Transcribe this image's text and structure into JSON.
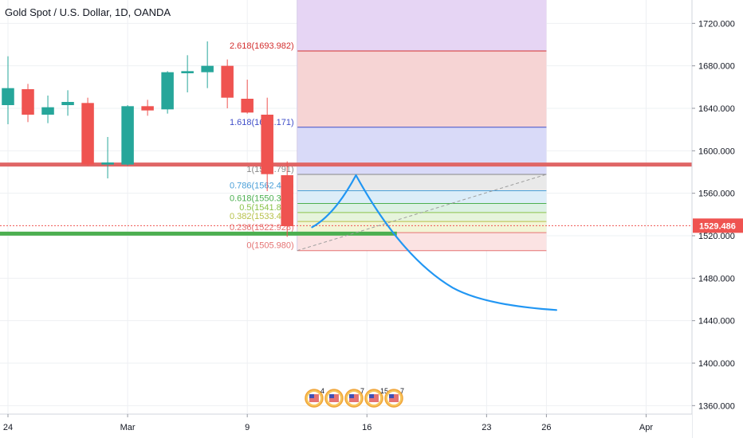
{
  "chart_data": {
    "type": "candlestick",
    "title": "Gold Spot / U.S. Dollar, 1D, OANDA",
    "y_axis": {
      "ticks": [
        1360,
        1400,
        1440,
        1480,
        1520,
        1560,
        1600,
        1640,
        1680,
        1720
      ],
      "tick_labels": [
        "1360.000",
        "1400.000",
        "1440.000",
        "1480.000",
        "1520.000",
        "1560.000",
        "1600.000",
        "1640.000",
        "1680.000",
        "1720.000"
      ],
      "range": [
        1352,
        1742
      ]
    },
    "x_axis": {
      "labels": [
        {
          "day": 0,
          "text": "24"
        },
        {
          "day": 6,
          "text": "Mar"
        },
        {
          "day": 12,
          "text": "9"
        },
        {
          "day": 18,
          "text": "16"
        },
        {
          "day": 24,
          "text": "23"
        },
        {
          "day": 27,
          "text": "26"
        },
        {
          "day": 32,
          "text": "Apr"
        }
      ],
      "day_range": [
        -0.4,
        34.3
      ]
    },
    "candles": [
      {
        "day": 0,
        "open": 1643,
        "high": 1689,
        "low": 1625,
        "close": 1659
      },
      {
        "day": 1,
        "open": 1658,
        "high": 1663,
        "low": 1627,
        "close": 1634
      },
      {
        "day": 2,
        "open": 1634,
        "high": 1652,
        "low": 1626,
        "close": 1641
      },
      {
        "day": 3,
        "open": 1643,
        "high": 1657,
        "low": 1633,
        "close": 1646
      },
      {
        "day": 4,
        "open": 1645,
        "high": 1650,
        "low": 1586,
        "close": 1587
      },
      {
        "day": 5,
        "open": 1587,
        "high": 1613,
        "low": 1574,
        "close": 1589
      },
      {
        "day": 6,
        "open": 1587,
        "high": 1643,
        "low": 1586,
        "close": 1642
      },
      {
        "day": 7,
        "open": 1642,
        "high": 1648,
        "low": 1633,
        "close": 1638
      },
      {
        "day": 8,
        "open": 1639,
        "high": 1675,
        "low": 1635,
        "close": 1674
      },
      {
        "day": 9,
        "open": 1673,
        "high": 1690,
        "low": 1655,
        "close": 1675
      },
      {
        "day": 10,
        "open": 1674,
        "high": 1703,
        "low": 1659,
        "close": 1680
      },
      {
        "day": 11,
        "open": 1680,
        "high": 1686,
        "low": 1640,
        "close": 1650
      },
      {
        "day": 12,
        "open": 1649,
        "high": 1667,
        "low": 1635,
        "close": 1636
      },
      {
        "day": 13,
        "open": 1634,
        "high": 1650,
        "low": 1562,
        "close": 1578
      },
      {
        "day": 14,
        "open": 1577,
        "high": 1590,
        "low": 1519,
        "close": 1529
      }
    ],
    "last_price": {
      "value": 1529.486,
      "label": "1529.486"
    },
    "horizontal_lines": [
      {
        "price": 1587,
        "color": "#e06666",
        "role": "resistance"
      },
      {
        "price": 1522,
        "color": "#4caf50",
        "role": "support",
        "day_start": -0.4,
        "day_end": 19.5
      }
    ],
    "fibonacci": {
      "day_start": 14.5,
      "day_end": 27,
      "levels": [
        {
          "ratio": "0",
          "price": 1505.98,
          "label": "0(1505.980)",
          "color": "#e57373",
          "fill": "#fbe3e3"
        },
        {
          "ratio": "0.236",
          "price": 1522.93,
          "label": "0.236(1522.928)",
          "color": "#e57373",
          "fill": "#fbe3e3"
        },
        {
          "ratio": "0.382",
          "price": 1533.41,
          "label": "0.382(1533.412)",
          "color": "#b7c14a",
          "fill": "#f3f5d6"
        },
        {
          "ratio": "0.5",
          "price": 1541.89,
          "label": "0.5(1541.886)",
          "color": "#8bc34a",
          "fill": "#e6f4dc"
        },
        {
          "ratio": "0.618",
          "price": 1550.36,
          "label": "0.618(1550.360)",
          "color": "#4caf50",
          "fill": "#dcf1e4"
        },
        {
          "ratio": "0.786",
          "price": 1562.42,
          "label": "0.786(1562.424)",
          "color": "#4a9fd8",
          "fill": "#dcedf8"
        },
        {
          "ratio": "1",
          "price": 1577.79,
          "label": "1(1577.791)",
          "color": "#888888",
          "fill": "#e9e9e9"
        },
        {
          "ratio": "1.618",
          "price": 1622.17,
          "label": "1.618(1622.171)",
          "color": "#3f4ec9",
          "fill": "#d9daf8"
        },
        {
          "ratio": "2.618",
          "price": 1693.98,
          "label": "2.618(1693.982)",
          "color": "#d32f2f",
          "fill": "#f6d4d4"
        },
        {
          "ratio": "top",
          "price": 1742,
          "label": "",
          "color": "#b39ddb",
          "fill": "#e6d5f4"
        }
      ]
    },
    "projection_path": [
      {
        "day": 15.25,
        "price": 1528
      },
      {
        "day": 16.4,
        "price": 1540
      },
      {
        "day": 17.45,
        "price": 1577
      },
      {
        "day": 19.7,
        "price": 1500
      },
      {
        "day": 22.3,
        "price": 1471
      },
      {
        "day": 27.5,
        "price": 1450
      }
    ],
    "dashed_trend": [
      {
        "day": 14.5,
        "price": 1505.98
      },
      {
        "day": 27,
        "price": 1577.79
      }
    ],
    "event_flags": [
      {
        "day": 15.35,
        "count": "4"
      },
      {
        "day": 16.35,
        "count": ""
      },
      {
        "day": 17.35,
        "count": "7"
      },
      {
        "day": 18.35,
        "count": "15"
      },
      {
        "day": 19.35,
        "count": "7"
      }
    ],
    "colors": {
      "up": "#26a69a",
      "down": "#ef5350",
      "grid": "#eef0f3",
      "axis_text": "#131722",
      "projection": "#2196f3",
      "price_badge": "#ef5350"
    },
    "grid": true
  }
}
